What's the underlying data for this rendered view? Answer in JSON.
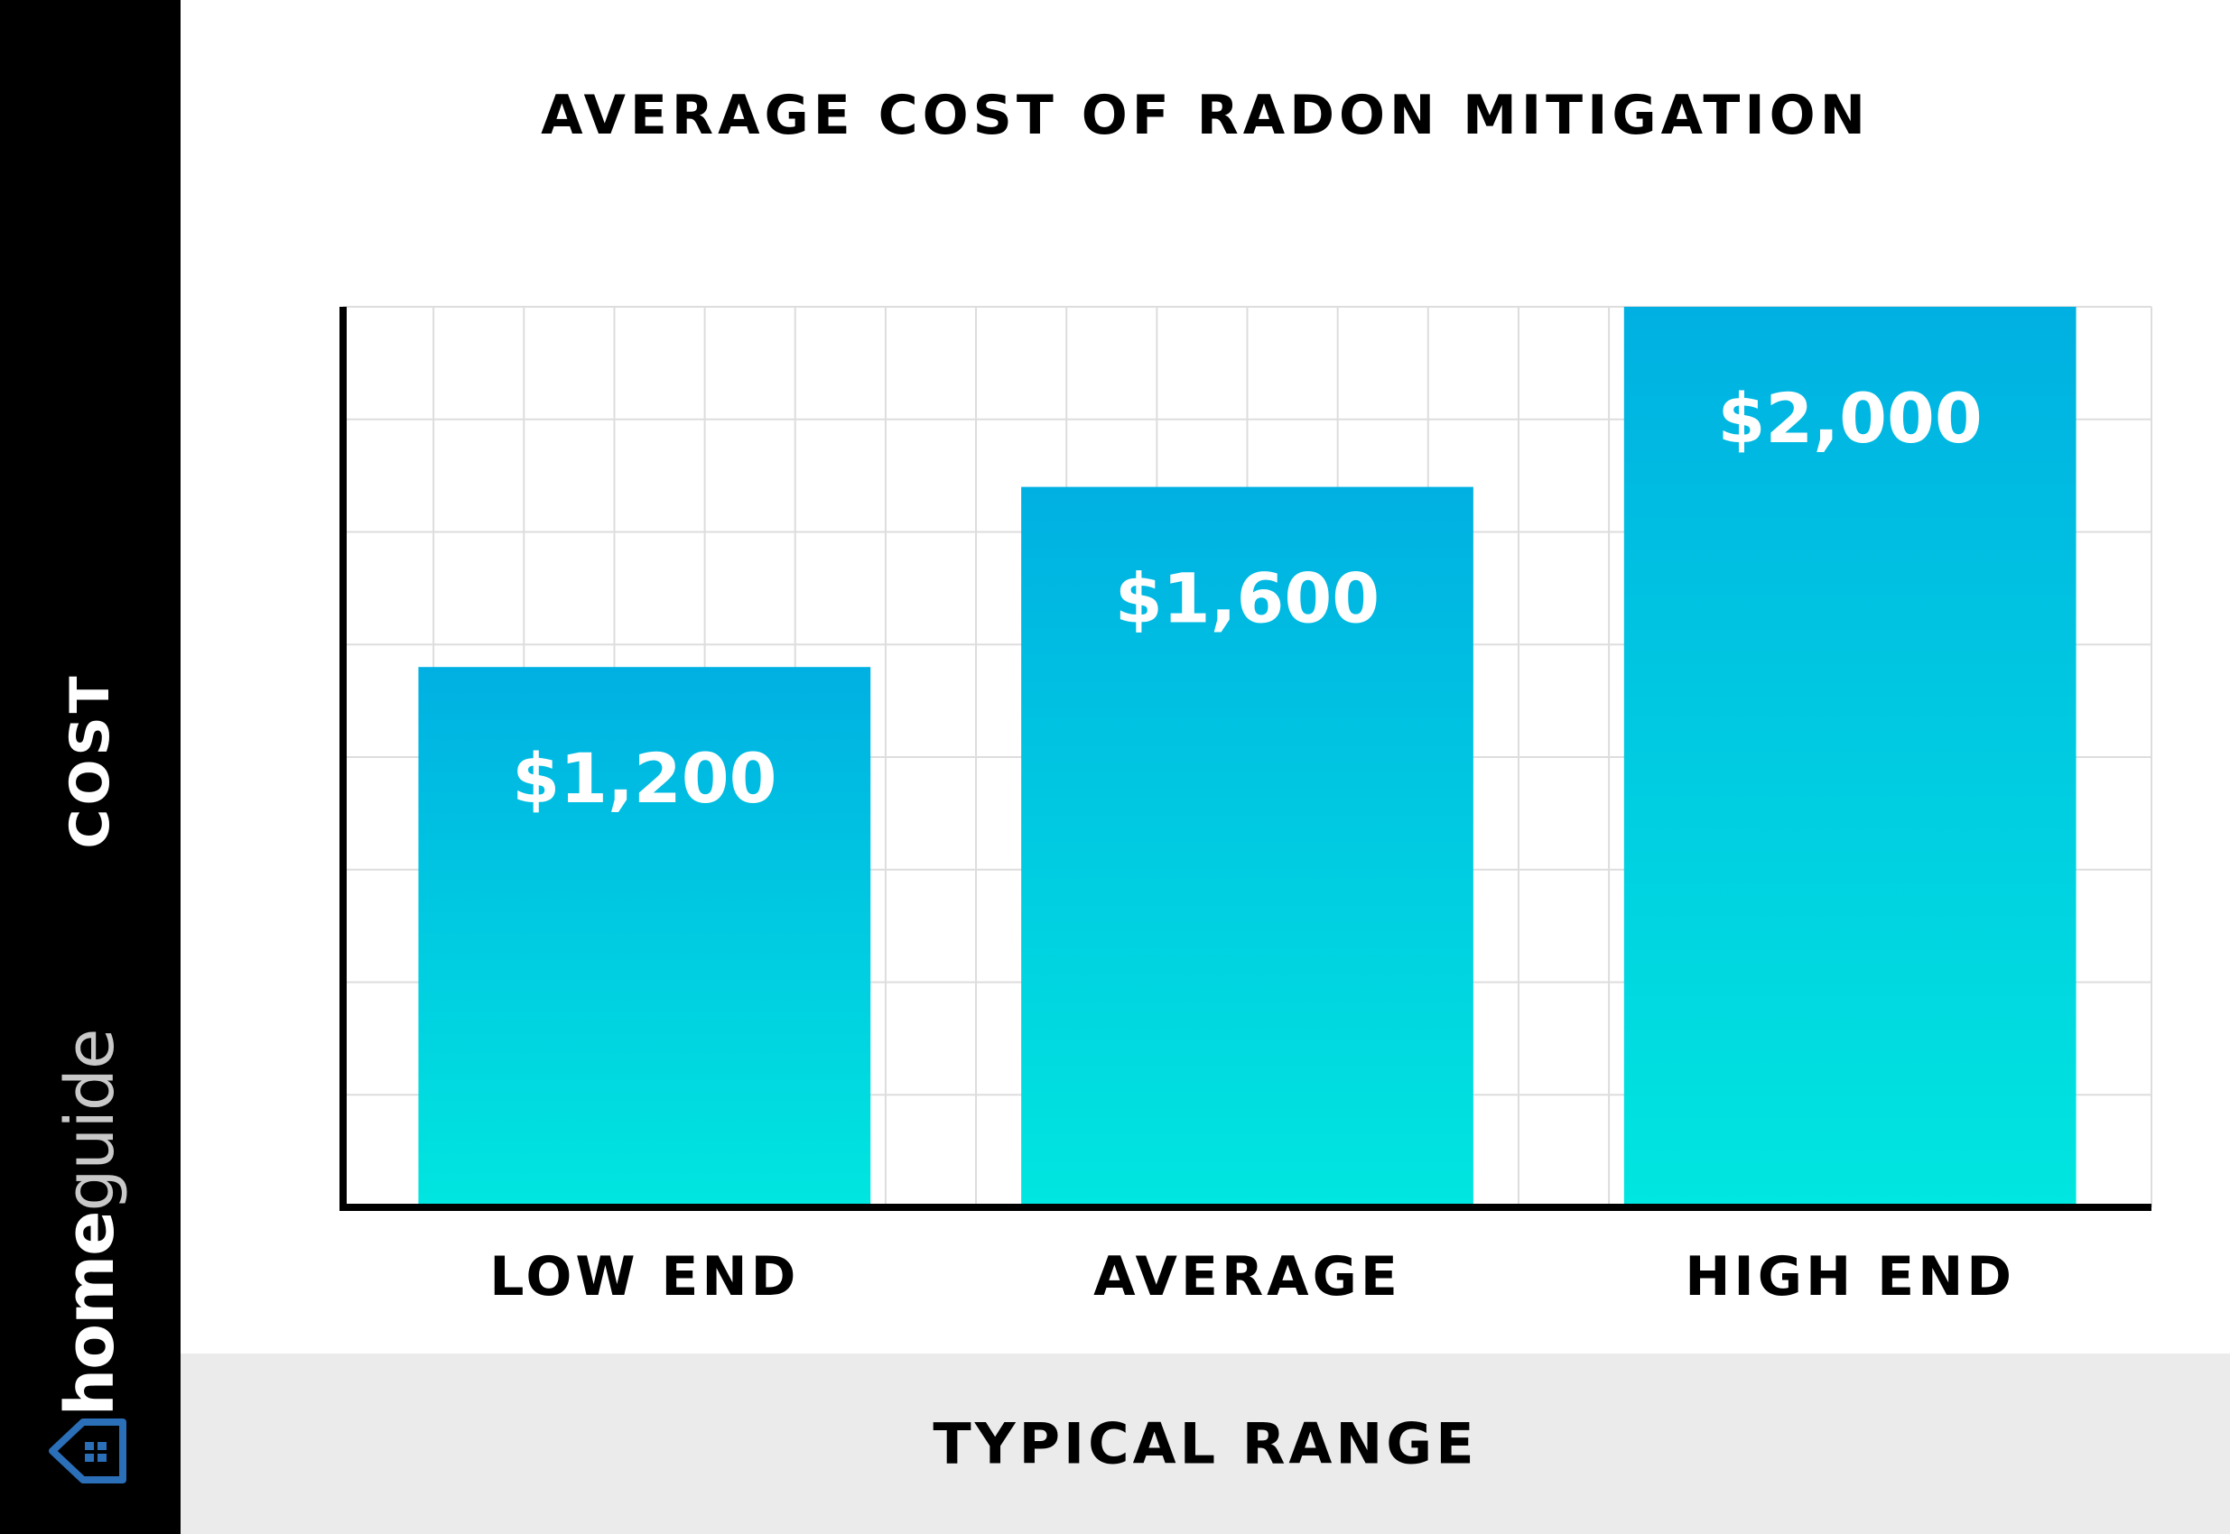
{
  "chart_data": {
    "type": "bar",
    "title": "AVERAGE COST OF RADON MITIGATION",
    "xlabel": "TYPICAL RANGE",
    "ylabel": "COST",
    "categories": [
      "LOW END",
      "AVERAGE",
      "HIGH END"
    ],
    "values": [
      1200,
      1600,
      2000
    ],
    "value_labels": [
      "$1,200",
      "$1,600",
      "$2,000"
    ],
    "ylim": [
      0,
      2000
    ],
    "grid": true,
    "colors": {
      "bar_top": "#00b0e2",
      "bar_bottom": "#00e6e0",
      "grid": "#dddddd",
      "axis": "#000000"
    }
  },
  "brand": {
    "part1": "home",
    "part2": "guide",
    "logo_icon": "house-icon",
    "logo_color": "#2a6fb8"
  }
}
